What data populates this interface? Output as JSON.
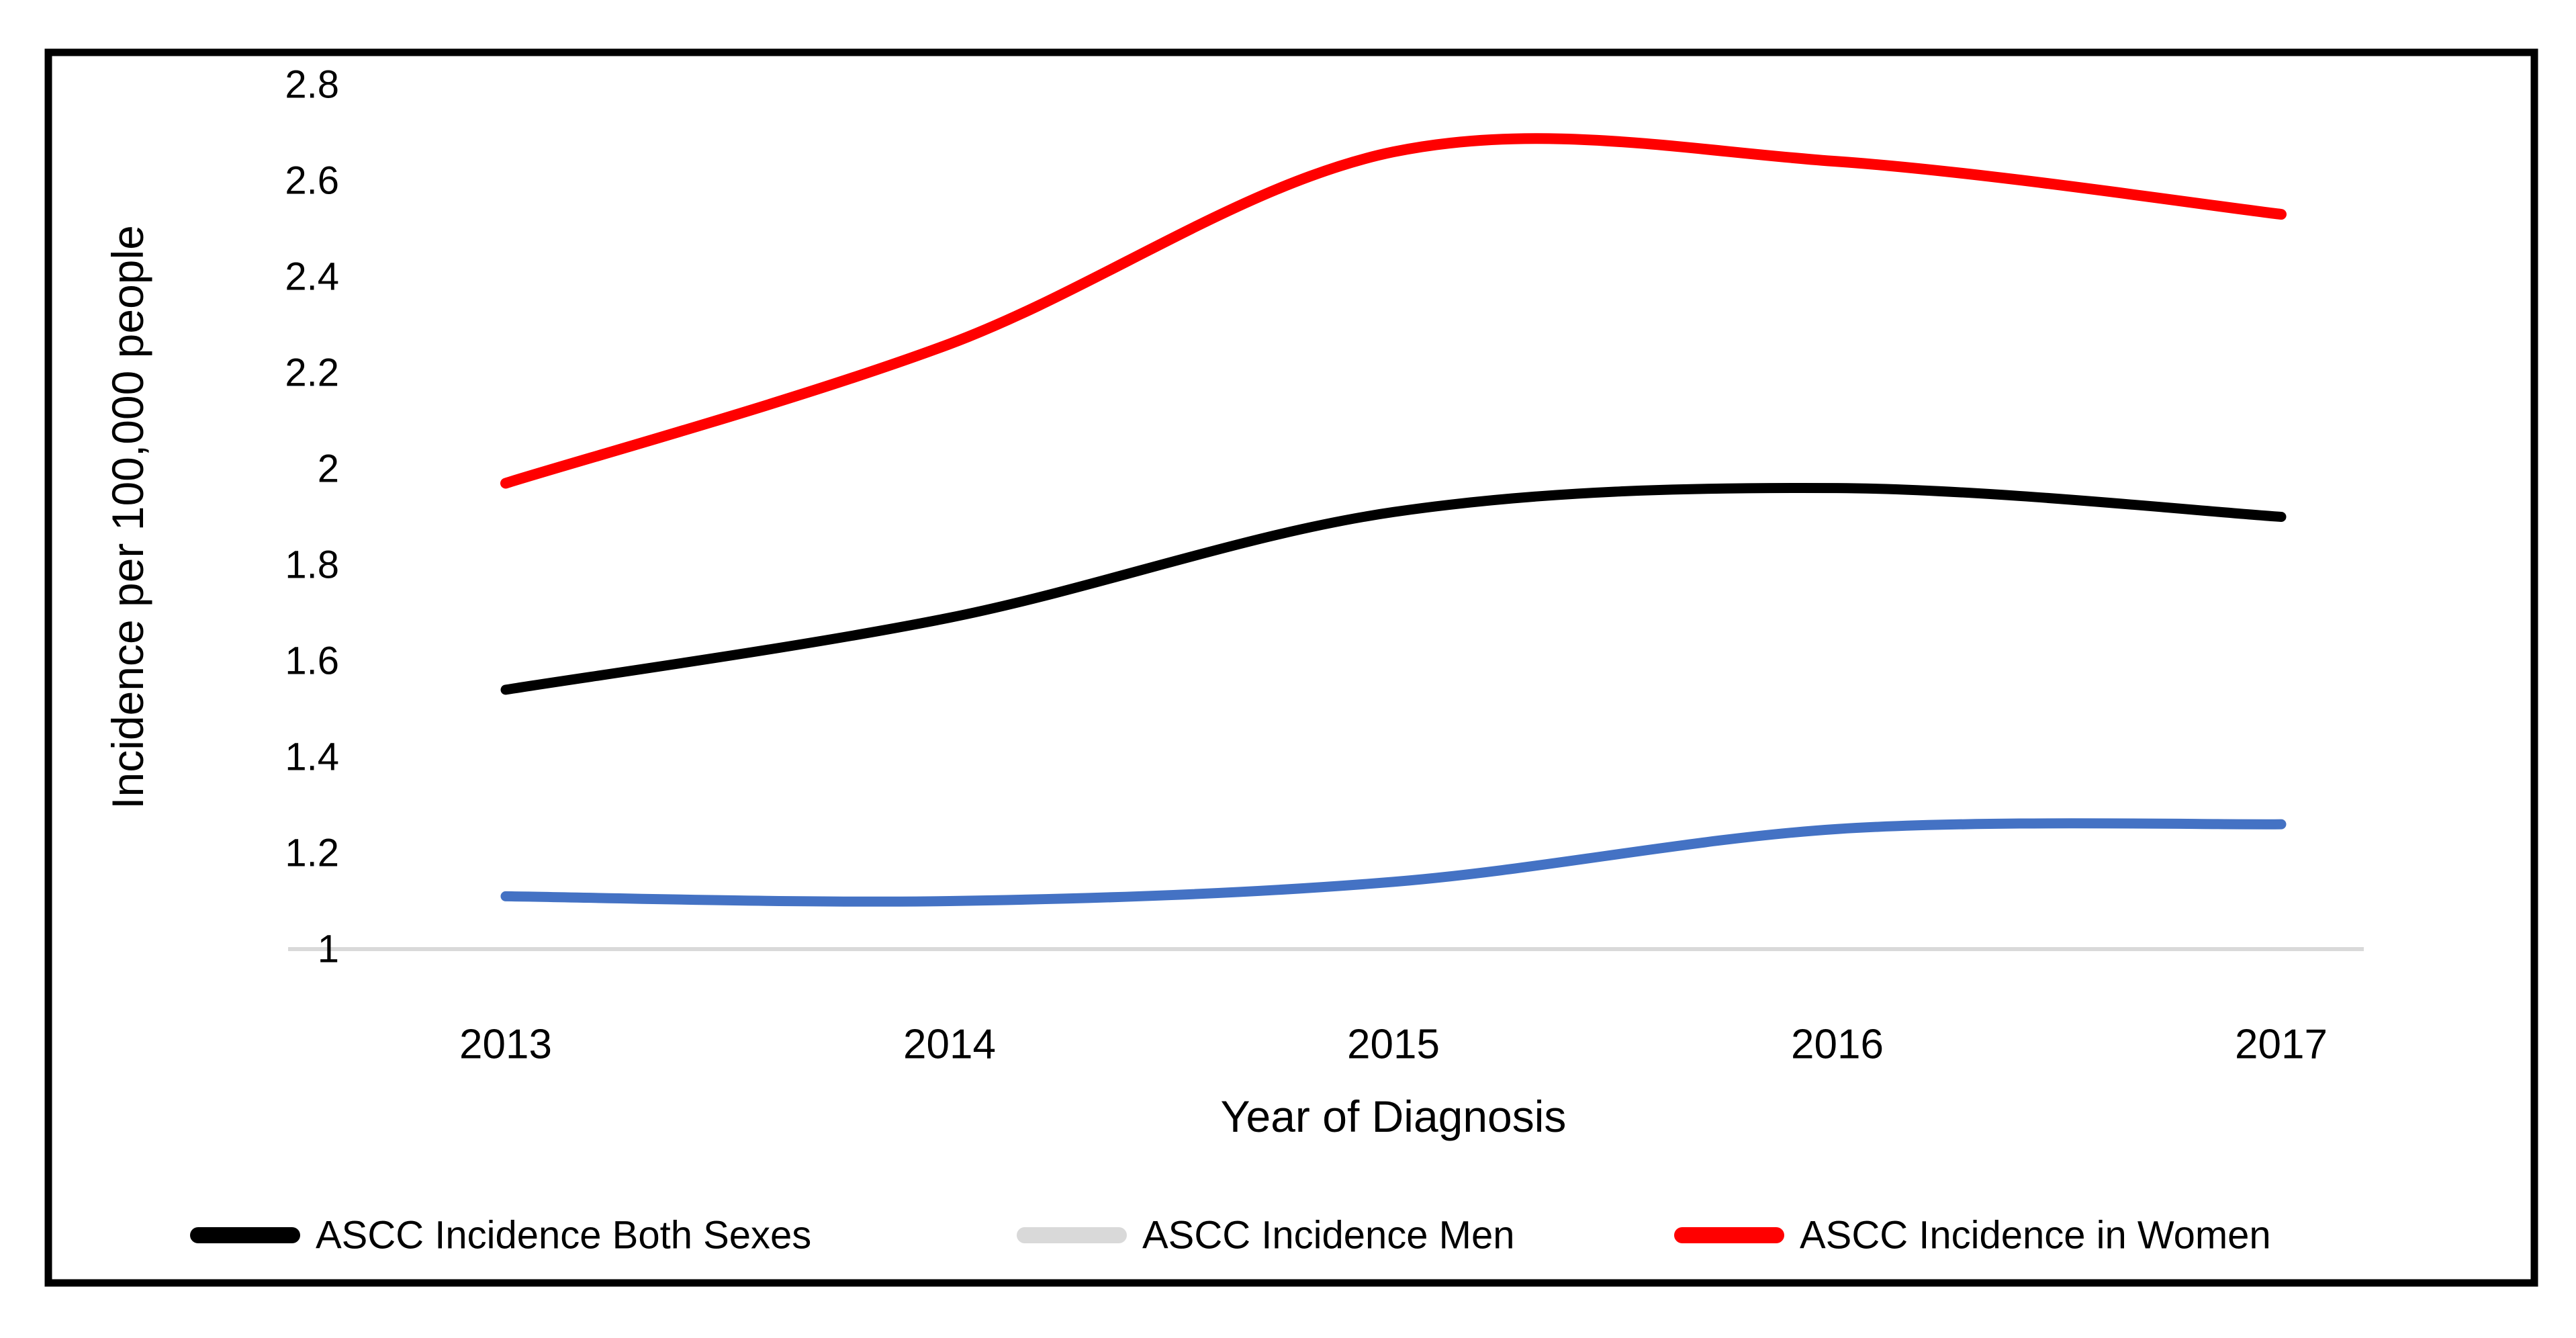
{
  "figure": {
    "background": "#FFFFFF",
    "border_color": "#000000"
  },
  "colors": {
    "axis_baseline": "#D9D9D9",
    "text": "#000000",
    "series_both_sexes": "#000000",
    "series_men_line": "#4472C4",
    "series_men_legend_swatch": "#D9D9D9",
    "series_women": "#FF0000"
  },
  "chart_data": {
    "type": "line",
    "smooth": true,
    "grid": "off",
    "title": "",
    "xlabel": "Year of Diagnosis",
    "ylabel": "Incidence per 100,000 people",
    "x": [
      2013,
      2014,
      2015,
      2016,
      2017
    ],
    "xtick_labels": [
      "2013",
      "2014",
      "2015",
      "2016",
      "2017"
    ],
    "ylim": [
      1,
      2.8
    ],
    "yticks": [
      1,
      1.2,
      1.4,
      1.6,
      1.8,
      2,
      2.2,
      2.4,
      2.6,
      2.8
    ],
    "ytick_labels": [
      "1",
      "1.2",
      "1.4",
      "1.6",
      "1.8",
      "2",
      "2.2",
      "2.4",
      "2.6",
      "2.8"
    ],
    "legend_position": "bottom",
    "series": [
      {
        "name": "ASCC Incidence Both Sexes",
        "line_color": "#000000",
        "swatch_color": "#000000",
        "values": [
          1.54,
          1.69,
          1.91,
          1.96,
          1.9
        ]
      },
      {
        "name": "ASCC Incidence Men",
        "line_color": "#4472C4",
        "swatch_color": "#D9D9D9",
        "values": [
          1.11,
          1.1,
          1.14,
          1.25,
          1.26
        ]
      },
      {
        "name": "ASCC Incidence in Women",
        "line_color": "#FF0000",
        "swatch_color": "#FF0000",
        "values": [
          1.97,
          2.26,
          2.66,
          2.64,
          2.53
        ]
      }
    ]
  },
  "legend": {
    "items": [
      {
        "label": "ASCC Incidence Both Sexes"
      },
      {
        "label": "ASCC Incidence Men"
      },
      {
        "label": "ASCC Incidence in Women"
      }
    ]
  }
}
